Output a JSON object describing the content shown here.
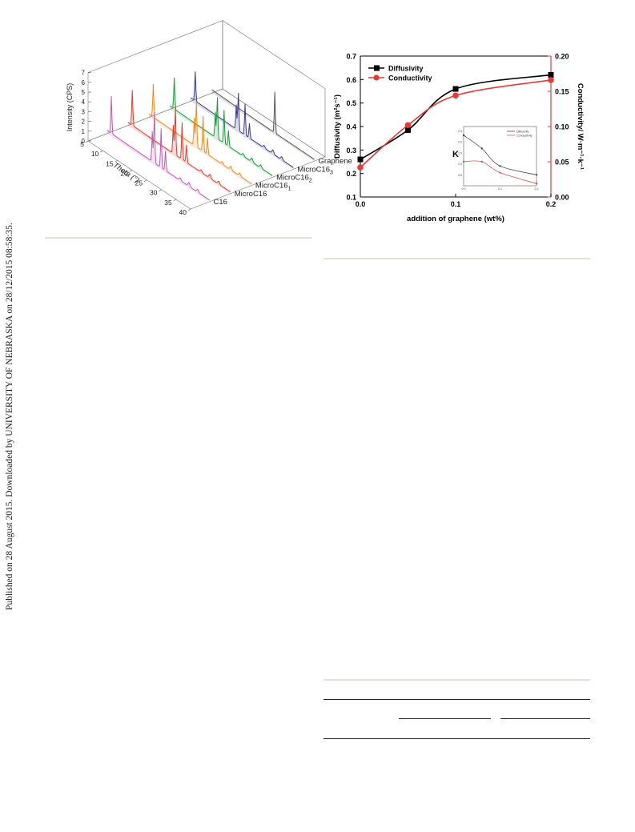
{
  "sidebar": {
    "text": "Published on 28 August 2015. Downloaded by UNIVERSITY OF NEBRASKA on 28/12/2015 08:58:35."
  },
  "fig3d": {
    "ylabel": "Intensity (CPS)",
    "xlabel": "Theta (°)",
    "yticks": [
      "0",
      "1",
      "2",
      "3",
      "4",
      "5",
      "6",
      "7"
    ],
    "xticks": [
      "5",
      "10",
      "15",
      "20",
      "25",
      "30",
      "35",
      "40"
    ],
    "series": [
      {
        "name": "Graphene",
        "color": "#555555",
        "peaks": [
          [
            26.5,
            4.2
          ]
        ]
      },
      {
        "name": "MicroC16",
        "sub": "3",
        "color": "#3b3b8a",
        "peaks": [
          [
            6.5,
            3.0
          ],
          [
            20.5,
            2.5
          ],
          [
            21.2,
            4.0
          ],
          [
            23.5,
            3.2
          ],
          [
            25,
            1.5
          ]
        ]
      },
      {
        "name": "MicroC16",
        "sub": "2",
        "color": "#1e9a3c",
        "peaks": [
          [
            6.5,
            3.2
          ],
          [
            20.5,
            2.6
          ],
          [
            21.2,
            4.4
          ],
          [
            23.5,
            3.4
          ],
          [
            25,
            1.6
          ]
        ]
      },
      {
        "name": "MicroC16",
        "sub": "1",
        "color": "#f28a1a",
        "peaks": [
          [
            6.5,
            3.4
          ],
          [
            20.5,
            2.8
          ],
          [
            21.2,
            4.8
          ],
          [
            23.5,
            3.6
          ],
          [
            25,
            1.7
          ]
        ]
      },
      {
        "name": "MicroC16",
        "sub": "",
        "color": "#e8392a",
        "peaks": [
          [
            6.5,
            3.6
          ],
          [
            20.5,
            2.9
          ],
          [
            21.2,
            5.0
          ],
          [
            23.5,
            3.8
          ],
          [
            25,
            1.8
          ]
        ]
      },
      {
        "name": "C16",
        "sub": "",
        "color": "#c05ab8",
        "peaks": [
          [
            6.5,
            3.8
          ],
          [
            20.5,
            3.1
          ],
          [
            21.2,
            5.4
          ],
          [
            23.5,
            4.0
          ],
          [
            25,
            2.0
          ]
        ]
      }
    ]
  },
  "chart_data": {
    "type": "line",
    "xlabel": "addition of graphene (wt%)",
    "ylabel": "Diffusivity (m²s⁻¹)",
    "y2label": "Conductivity/ W·m⁻¹·k⁻¹",
    "xlim": [
      0,
      0.2
    ],
    "ylim": [
      0.1,
      0.7
    ],
    "y2lim": [
      0,
      0.2
    ],
    "xticks": [
      "0.0",
      "0.1",
      "0.2"
    ],
    "yticks": [
      "0.1",
      "0.2",
      "0.3",
      "0.4",
      "0.5",
      "0.6",
      "0.7"
    ],
    "y2ticks": [
      "0.00",
      "0.05",
      "0.10",
      "0.15",
      "0.20"
    ],
    "series": [
      {
        "name": "Diffusivity",
        "axis": "left",
        "marker": "square",
        "color": "#000000",
        "x": [
          0,
          0.05,
          0.1,
          0.2
        ],
        "y": [
          0.26,
          0.385,
          0.56,
          0.62
        ]
      },
      {
        "name": "Conductivity",
        "axis": "right",
        "marker": "circle",
        "color": "#e8393a",
        "x": [
          0,
          0.05,
          0.1,
          0.2
        ],
        "y": [
          0.042,
          0.102,
          0.144,
          0.166
        ]
      }
    ],
    "inset": {
      "label": "K",
      "xticks": [
        "0.0",
        "0.1",
        "0.2"
      ],
      "yticks": [
        "0.5",
        "1.0",
        "1.5",
        "2.0",
        "2.5"
      ],
      "legend": [
        "Diffusivity",
        "Conductivity"
      ],
      "series": [
        {
          "name": "Diffusivity",
          "color": "#333333",
          "x": [
            0,
            0.05,
            0.1,
            0.2
          ],
          "y": [
            2.3,
            1.7,
            0.9,
            0.5
          ]
        },
        {
          "name": "Conductivity",
          "color": "#e8393a",
          "x": [
            0,
            0.05,
            0.1,
            0.2
          ],
          "y": [
            1.1,
            1.1,
            0.6,
            0.1
          ]
        }
      ]
    }
  }
}
